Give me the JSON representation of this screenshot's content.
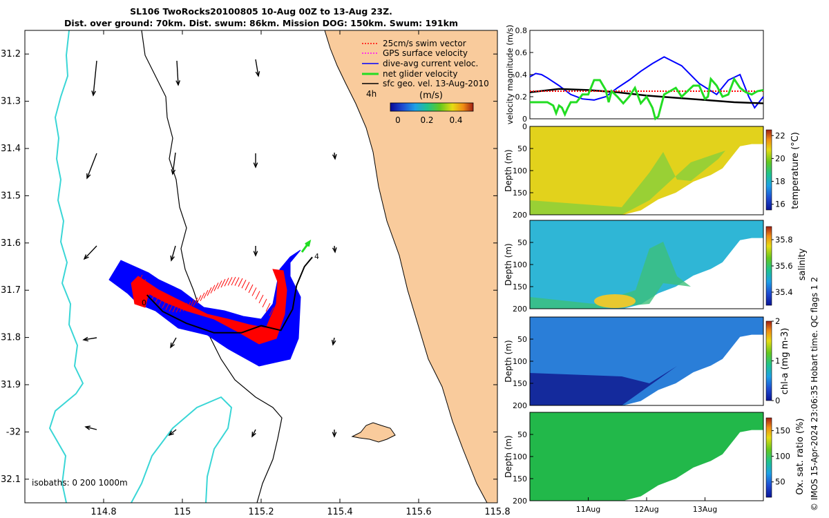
{
  "title": {
    "line1": "SL106 TwoRocks20100805 10-Aug 00Z to 13-Aug 23Z.",
    "line2": "Dist. over ground: 70km. Dist. swum: 86km. Mission DOG: 150km. Swum: 191km"
  },
  "credit": "© IMOS 15-Apr-2024 23:06:35 Hobart time. QC flags 1  2",
  "colors": {
    "land": "#f9cb9c",
    "coast": "#000000",
    "isobath": "#39d6d6",
    "swim": "#ff0000",
    "gps": "#ff00ff",
    "current": "#0000ff",
    "net": "#22dd22",
    "geo": "#000000"
  },
  "chart_data": [
    {
      "id": "map",
      "type": "map",
      "xlim": [
        114.6,
        115.8
      ],
      "ylim": [
        -32.15,
        -31.15
      ],
      "x_ticks": [
        114.8,
        115,
        115.2,
        115.4,
        115.6,
        115.8
      ],
      "x_tick_labels": [
        "114.8",
        "115",
        "115.2",
        "115.4",
        "115.6",
        "115.8"
      ],
      "y_ticks": [
        -31.2,
        -31.3,
        -31.4,
        -31.5,
        -31.6,
        -31.7,
        -31.8,
        -31.9,
        -32,
        -32.1
      ],
      "y_tick_labels": [
        "31.2",
        "31.3",
        "31.4",
        "31.5",
        "31.6",
        "31.7",
        "31.8",
        "31.9",
        "-32",
        "32.1"
      ],
      "legend": [
        {
          "label": "25cm/s swim vector",
          "color": "#ff0000",
          "style": "dotted"
        },
        {
          "label": "GPS surface velocity",
          "color": "#ff00ff",
          "style": "dotted"
        },
        {
          "label": "dive-avg current veloc.",
          "color": "#0000ff",
          "style": "solid"
        },
        {
          "label": "net glider velocity",
          "color": "#22dd22",
          "style": "thick"
        },
        {
          "label": "sfc geo. vel. 13-Aug-2010",
          "color": "#000000",
          "style": "solid"
        }
      ],
      "legend_placement": "top-right",
      "time_marks": [
        "4h",
        "0",
        "4"
      ],
      "colorbar": {
        "label": "(m/s)",
        "ticks": [
          "0",
          "0.2",
          "0.4"
        ],
        "range": [
          0,
          0.5
        ]
      },
      "isobaths_label": "isobaths: 0   200  1000m",
      "track": [
        [
          114.91,
          -31.71
        ],
        [
          114.95,
          -31.745
        ],
        [
          115.01,
          -31.77
        ],
        [
          115.08,
          -31.79
        ],
        [
          115.15,
          -31.79
        ],
        [
          115.2,
          -31.775
        ],
        [
          115.25,
          -31.785
        ],
        [
          115.28,
          -31.74
        ],
        [
          115.29,
          -31.69
        ],
        [
          115.31,
          -31.65
        ],
        [
          115.33,
          -31.63
        ]
      ]
    },
    {
      "id": "velocity",
      "type": "line",
      "ylabel": "velocity magnitude (m/s)",
      "xlim": [
        0,
        4
      ],
      "ylim": [
        0,
        0.8
      ],
      "y_ticks": [
        0,
        0.2,
        0.4,
        0.6,
        0.8
      ],
      "y_tick_labels": [
        "0",
        "0.2",
        "0.4",
        "0.6",
        "0.8"
      ],
      "series": [
        {
          "key": "current",
          "color": "#0000ff",
          "x": [
            0,
            0.1,
            0.2,
            0.3,
            0.5,
            0.7,
            0.9,
            1.1,
            1.3,
            1.5,
            1.7,
            1.9,
            2.1,
            2.3,
            2.6,
            2.9,
            3.2,
            3.4,
            3.6,
            3.75,
            3.85,
            4.0
          ],
          "y": [
            0.38,
            0.41,
            0.4,
            0.37,
            0.3,
            0.22,
            0.18,
            0.17,
            0.2,
            0.28,
            0.35,
            0.43,
            0.5,
            0.56,
            0.48,
            0.32,
            0.22,
            0.35,
            0.4,
            0.2,
            0.1,
            0.2
          ]
        },
        {
          "key": "geo",
          "color": "#000000",
          "x": [
            0,
            0.5,
            1,
            1.5,
            2,
            2.5,
            3,
            3.5,
            4
          ],
          "y": [
            0.24,
            0.27,
            0.26,
            0.24,
            0.21,
            0.19,
            0.17,
            0.15,
            0.14
          ]
        },
        {
          "key": "swim",
          "color": "#ff0000",
          "x": [
            0,
            1,
            2,
            3,
            4
          ],
          "y": [
            0.25,
            0.25,
            0.25,
            0.25,
            0.25
          ]
        },
        {
          "key": "net",
          "color": "#22dd22",
          "x": [
            0,
            0.3,
            0.4,
            0.45,
            0.5,
            0.55,
            0.6,
            0.65,
            0.7,
            0.8,
            0.9,
            1.0,
            1.1,
            1.2,
            1.3,
            1.35,
            1.4,
            1.5,
            1.6,
            1.7,
            1.8,
            1.9,
            2.0,
            2.1,
            2.15,
            2.2,
            2.3,
            2.4,
            2.5,
            2.6,
            2.7,
            2.8,
            2.9,
            3.0,
            3.05,
            3.1,
            3.2,
            3.3,
            3.4,
            3.5,
            3.6,
            3.7,
            3.8,
            3.9,
            4.0
          ],
          "y": [
            0.15,
            0.15,
            0.12,
            0.05,
            0.12,
            0.1,
            0.04,
            0.1,
            0.15,
            0.15,
            0.22,
            0.22,
            0.35,
            0.35,
            0.26,
            0.15,
            0.25,
            0.2,
            0.14,
            0.2,
            0.28,
            0.14,
            0.2,
            0.1,
            0.0,
            0.02,
            0.22,
            0.25,
            0.28,
            0.2,
            0.25,
            0.3,
            0.3,
            0.18,
            0.2,
            0.36,
            0.3,
            0.2,
            0.22,
            0.36,
            0.28,
            0.24,
            0.22,
            0.25,
            0.26
          ]
        }
      ]
    },
    {
      "id": "temperature",
      "type": "heatmap",
      "ylabel": "Depth (m)",
      "cbar_label": "temperature (°C)",
      "ylim": [
        200,
        0
      ],
      "y_ticks": [
        0,
        50,
        100,
        150,
        200
      ],
      "y_tick_labels": [
        "0",
        "50",
        "100",
        "150",
        "200"
      ],
      "clim": [
        15.5,
        22.5
      ],
      "cbar_ticks": [
        16,
        18,
        20,
        22
      ],
      "cbar_tick_labels": [
        "16",
        "18",
        "20",
        "22"
      ],
      "bottom_depth": [
        {
          "x": 0,
          "d": 200
        },
        {
          "x": 1.6,
          "d": 200
        },
        {
          "x": 1.9,
          "d": 190
        },
        {
          "x": 2.2,
          "d": 165
        },
        {
          "x": 2.5,
          "d": 150
        },
        {
          "x": 2.8,
          "d": 125
        },
        {
          "x": 3.1,
          "d": 110
        },
        {
          "x": 3.3,
          "d": 95
        },
        {
          "x": 3.45,
          "d": 70
        },
        {
          "x": 3.6,
          "d": 45
        },
        {
          "x": 3.8,
          "d": 40
        },
        {
          "x": 4,
          "d": 40
        }
      ]
    },
    {
      "id": "salinity",
      "type": "heatmap",
      "ylabel": "Depth (m)",
      "cbar_label": "salinity",
      "ylim": [
        200,
        0
      ],
      "y_ticks": [
        50,
        100,
        150,
        200
      ],
      "y_tick_labels": [
        "50",
        "100",
        "150",
        "200"
      ],
      "clim": [
        35.3,
        35.9
      ],
      "cbar_ticks": [
        35.4,
        35.6,
        35.8
      ],
      "cbar_tick_labels": [
        "35.4",
        "35.6",
        "35.8"
      ]
    },
    {
      "id": "chla",
      "type": "heatmap",
      "ylabel": "Depth (m)",
      "cbar_label": "chl-a (mg m-3)",
      "ylim": [
        200,
        0
      ],
      "y_ticks": [
        50,
        100,
        150,
        200
      ],
      "y_tick_labels": [
        "50",
        "100",
        "150",
        "200"
      ],
      "clim": [
        0,
        2
      ],
      "cbar_ticks": [
        0,
        1,
        2
      ],
      "cbar_tick_labels": [
        "0",
        "1",
        "2"
      ]
    },
    {
      "id": "oxygen",
      "type": "heatmap",
      "ylabel": "Depth (m)",
      "cbar_label": "Ox. sat. ratio (%)",
      "ylim": [
        200,
        0
      ],
      "y_ticks": [
        50,
        100,
        150,
        200
      ],
      "y_tick_labels": [
        "50",
        "100",
        "150",
        "200"
      ],
      "clim": [
        20,
        175
      ],
      "cbar_ticks": [
        50,
        100,
        150
      ],
      "cbar_tick_labels": [
        "50",
        "100",
        "150"
      ],
      "x_ticks": [
        1,
        2,
        3
      ],
      "x_tick_labels": [
        "11Aug",
        "12Aug",
        "13Aug"
      ]
    }
  ]
}
